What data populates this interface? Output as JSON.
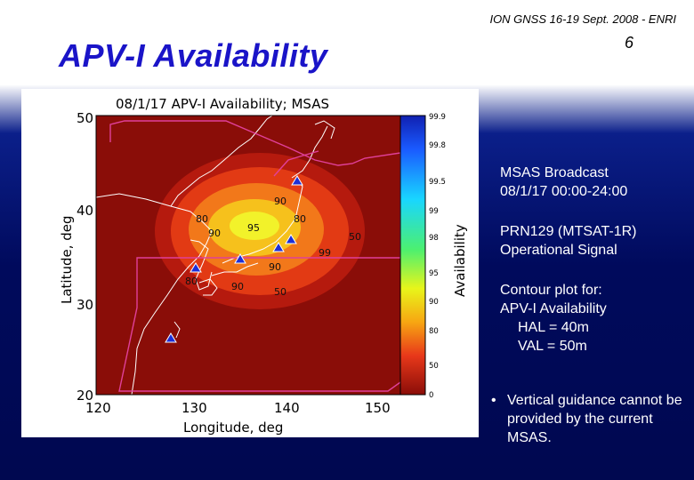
{
  "header": {
    "conference": "ION GNSS 16-19 Sept. 2008 - ENRI",
    "page_number": "6",
    "title": "APV-I Availability"
  },
  "figure": {
    "plot_title": "08/1/17 APV-I Availability; MSAS",
    "xlabel": "Longitude, deg",
    "ylabel": "Latitude, deg",
    "x_ticks": [
      "120",
      "130",
      "140",
      "150"
    ],
    "y_ticks": [
      "50",
      "40",
      "30",
      "20"
    ],
    "colorbar_label": "Availability",
    "colorbar_ticks": [
      "99.9",
      "99.8",
      "99.5",
      "99",
      "98",
      "95",
      "90",
      "80",
      "50",
      "0"
    ],
    "contour_labels": [
      "80",
      "90",
      "95",
      "90",
      "80",
      "99",
      "50",
      "90",
      "80",
      "50",
      "90"
    ],
    "colors": {
      "background": "#8a0d08",
      "coast": "#ffffff",
      "fir": "#e0409a",
      "station": "#1d2fd6"
    }
  },
  "side": {
    "msas_broadcast": [
      "MSAS Broadcast",
      "08/1/17 00:00-24:00"
    ],
    "prn": [
      "PRN129 (MTSAT-1R)",
      "Operational Signal"
    ],
    "contour": [
      "Contour plot for:",
      "APV-I Availability",
      "HAL = 40m",
      "VAL = 50m"
    ],
    "bullet_mark": "•",
    "bullet_text": "Vertical guidance cannot be provided by the current MSAS."
  }
}
